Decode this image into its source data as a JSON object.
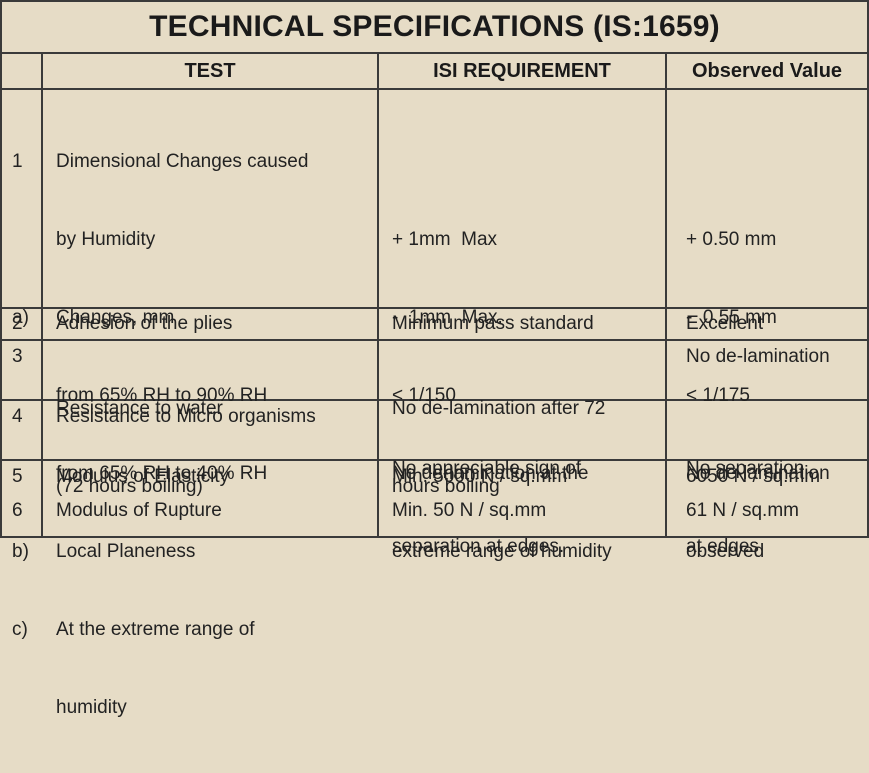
{
  "title": "TECHNICAL SPECIFICATIONS (IS:1659)",
  "headers": {
    "test": "TEST",
    "requirement": "ISI REQUIREMENT",
    "observed": "Observed Value"
  },
  "row1": {
    "index_lines": [
      "1",
      "",
      "a)",
      "",
      "",
      "b)",
      "c)"
    ],
    "test_lines": [
      "Dimensional Changes caused",
      "by Humidity",
      "Changes, mm",
      "from 65% RH to 90% RH",
      "from 65% RH to 40% RH",
      "Local Planeness",
      "At the extreme range of",
      "humidity"
    ],
    "req_lines": [
      "+ 1mm  Max",
      "-  1mm  Max.",
      "< 1/150",
      "No de-lamination at the",
      "extreme range of humidity"
    ],
    "obs_lines": [
      "+ 0.50 mm",
      "-  0.55 mm",
      "< 1/175",
      "No de-lamination",
      "observed"
    ]
  },
  "row2": {
    "index": "2",
    "test": "Adhesion of the plies",
    "requirement": "Minimum pass standard",
    "observed": "Excellent"
  },
  "row3": {
    "index": "3",
    "test_lines": [
      "Resistance to water",
      "(72 hours boiling)"
    ],
    "req_lines": [
      "No de-lamination after 72",
      "hours boiling"
    ],
    "observed": "No de-lamination"
  },
  "row4": {
    "index": "4",
    "test": "Resistance to Micro organisms",
    "req_lines": [
      "No appreciable sign of",
      "separation at edges."
    ],
    "obs_lines": [
      "No separation",
      "at edges"
    ]
  },
  "row5": {
    "index": "5",
    "test": "Modulus of Elasticity",
    "requirement": "Min. 5000 N / sq.mm",
    "observed": "6050 N / sq.mm"
  },
  "row6": {
    "index": "6",
    "test": "Modulus of Rupture",
    "requirement": "Min. 50 N / sq.mm",
    "observed": "61 N / sq.mm"
  }
}
